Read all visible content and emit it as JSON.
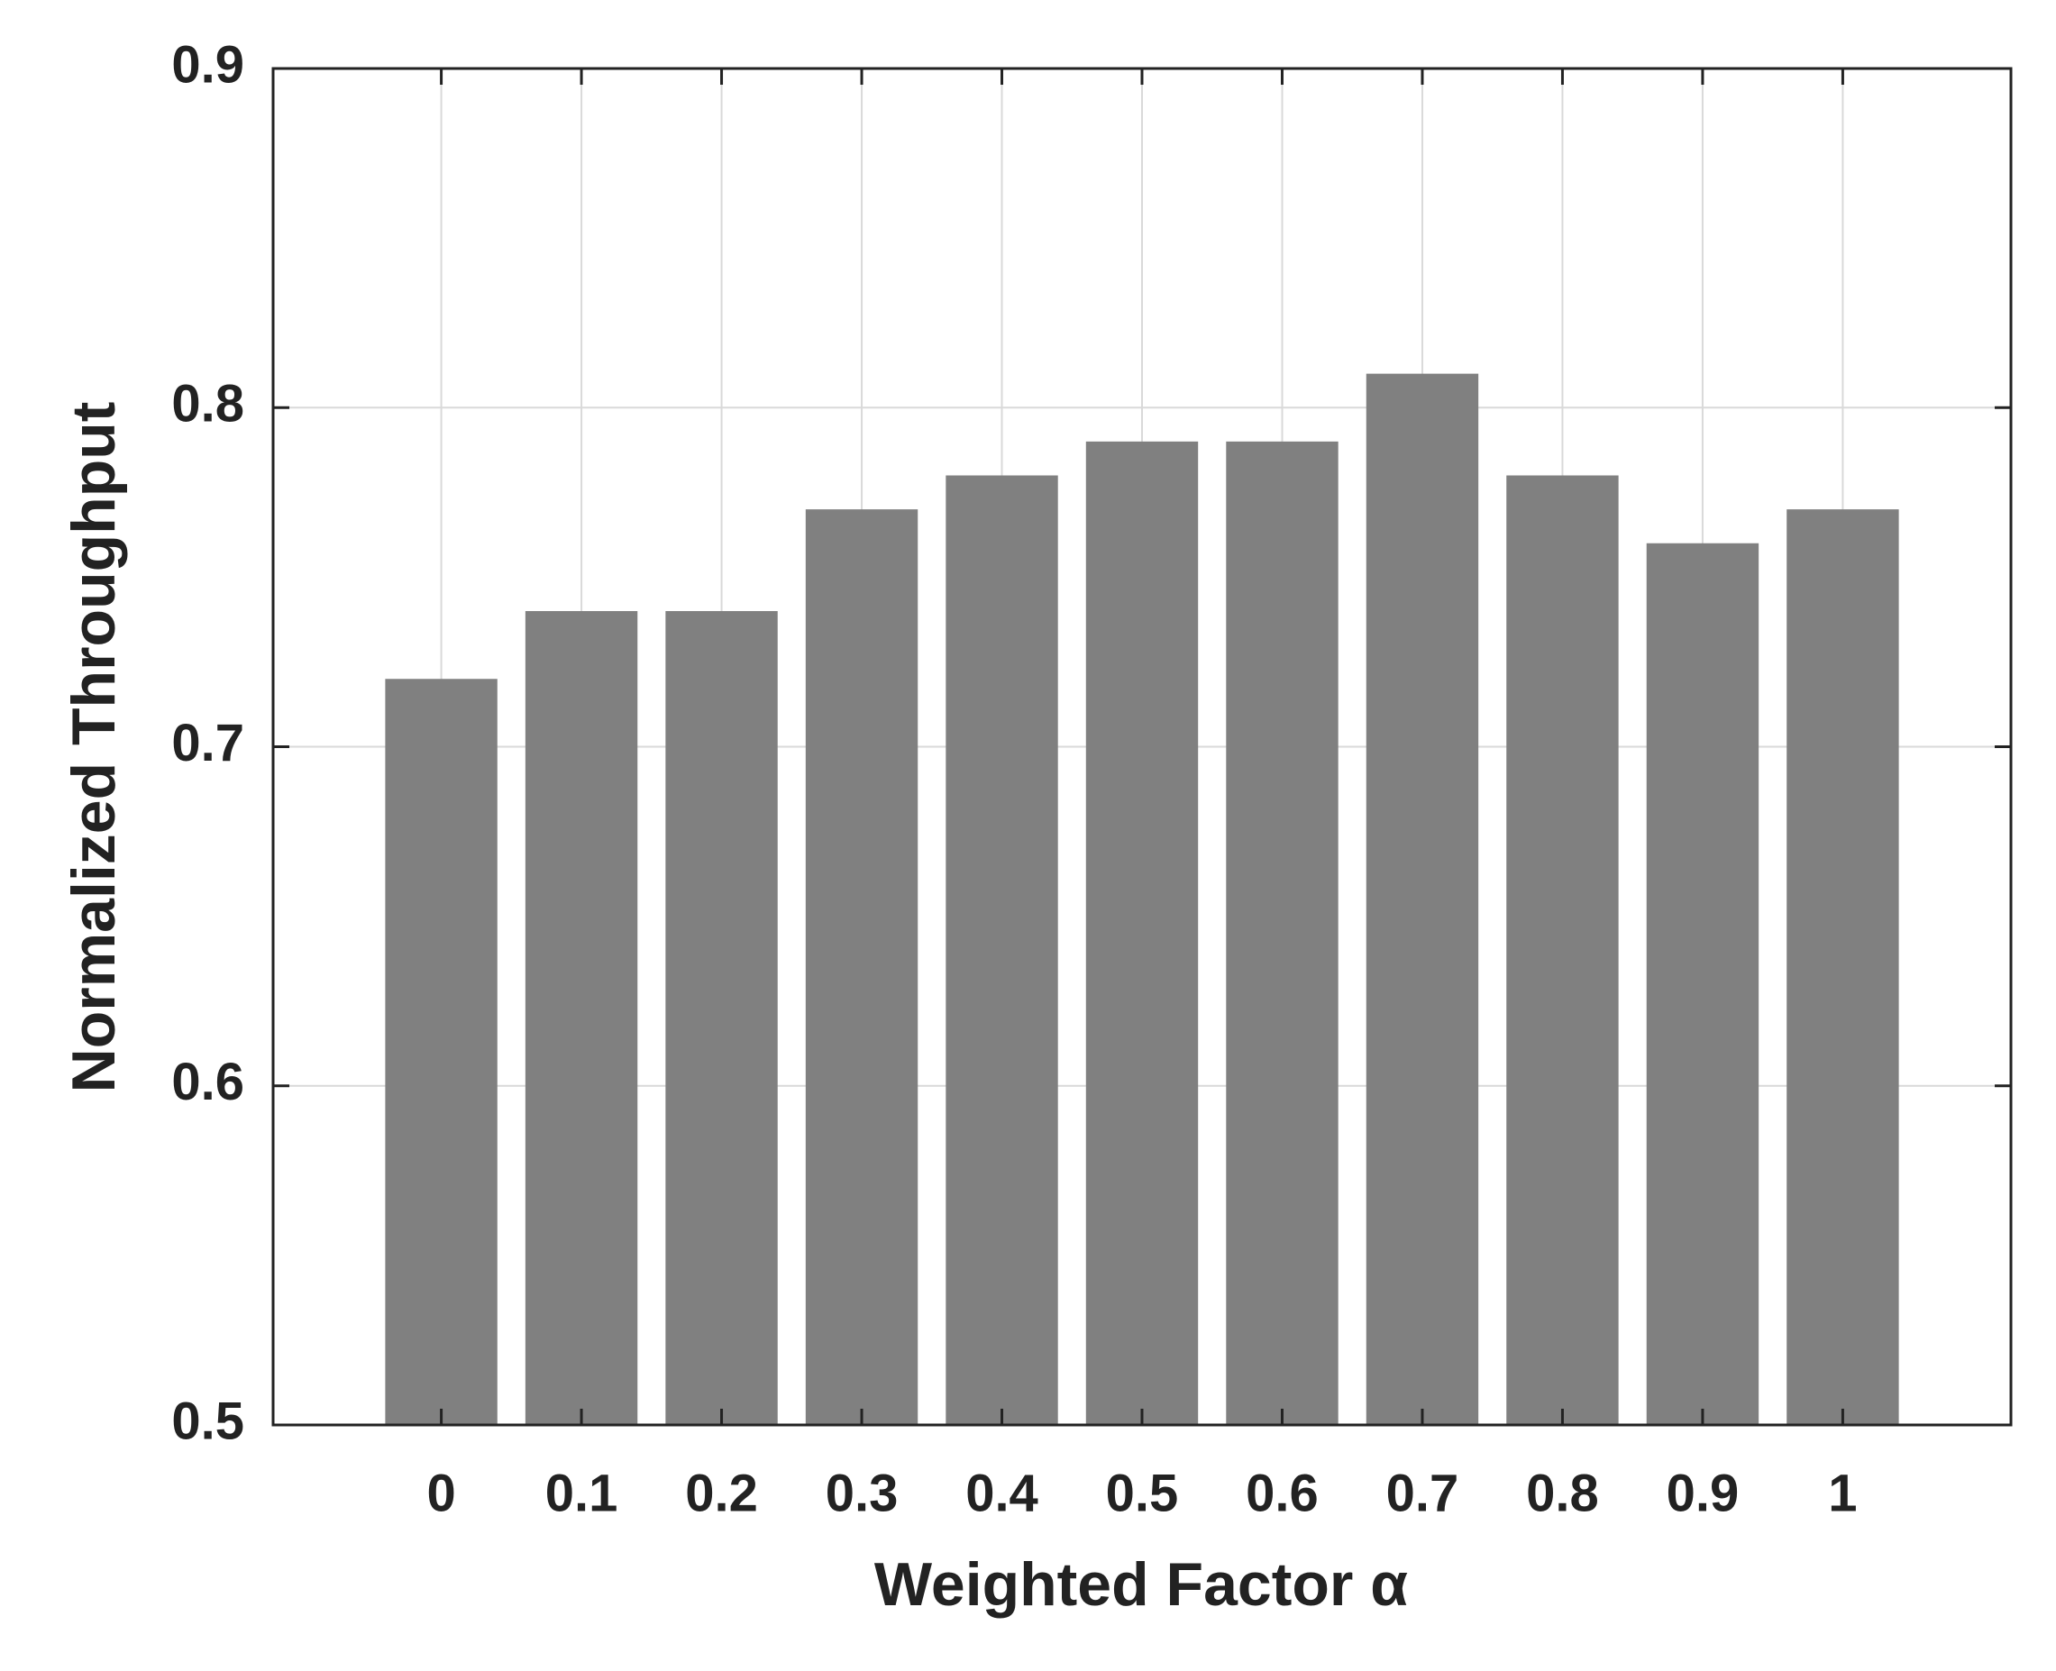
{
  "chart_data": {
    "type": "bar",
    "x_label": "Weighted Factor α",
    "y_label": "Normalized Throughput",
    "categories": [
      "0",
      "0.1",
      "0.2",
      "0.3",
      "0.4",
      "0.5",
      "0.6",
      "0.7",
      "0.8",
      "0.9",
      "1"
    ],
    "values": [
      0.72,
      0.74,
      0.74,
      0.77,
      0.78,
      0.79,
      0.79,
      0.81,
      0.78,
      0.76,
      0.77
    ],
    "color": "#808080",
    "ylim": [
      0.5,
      0.9
    ],
    "yticks": [
      0.5,
      0.6,
      0.7,
      0.8,
      0.9
    ],
    "grid": true
  }
}
